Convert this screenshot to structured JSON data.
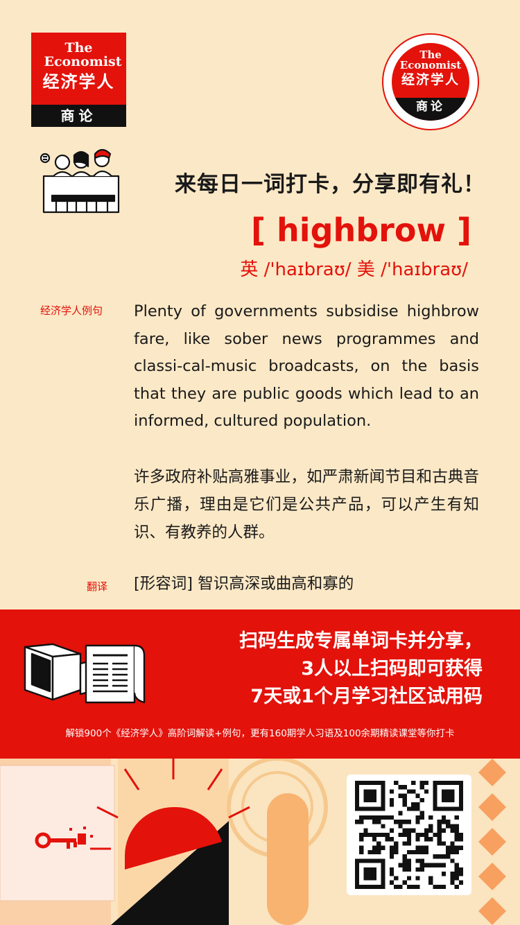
{
  "logos": {
    "square": {
      "en": "The Economist",
      "cn": "经济学人",
      "sub": "商论"
    },
    "circle": {
      "en": "The Economist",
      "cn": "经济学人",
      "sub": "商论"
    }
  },
  "headline": "来每日一词打卡，分享即有礼！",
  "word": "[ highbrow ]",
  "phonetic": "英 /'haɪbraʊ/ 美 /'haɪbraʊ/",
  "example": {
    "label": "经济学人例句",
    "en": "Plenty of governments subsidise highbrow fare, like sober news programmes and classi-cal-music broadcasts, on the basis that they are public goods which lead to an informed, cultured population.",
    "cn": "许多政府补贴高雅事业，如严肃新闻节目和古典音乐广播，理由是它们是公共产品，可以产生有知识、有教养的人群。"
  },
  "translation": {
    "label": "翻译",
    "text": "[形容词] 智识高深或曲高和寡的"
  },
  "promo": {
    "line1": "扫码生成专属单词卡并分享，",
    "line2": "3人以上扫码即可获得",
    "line3": "7天或1个月学习社区试用码",
    "footnote": "解锁900个《经济学人》高阶词解读+例句，更有160期学人习语及100余期精读课堂等你打卡"
  },
  "colors": {
    "accent": "#e3120b",
    "background": "#fbe8c6",
    "dark": "#111111"
  },
  "icons": [
    "people-illustration-icon",
    "newspaper-illustration-icon",
    "key-icon",
    "qr-code-icon"
  ]
}
